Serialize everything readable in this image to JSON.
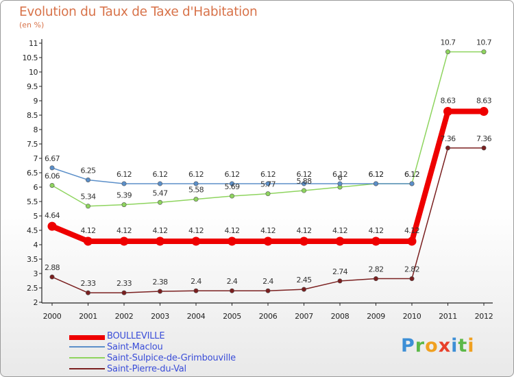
{
  "chart_data": {
    "type": "line",
    "title": "Evolution du Taux de Taxe d'Habitation",
    "subtitle": "(en %)",
    "xlabel": "",
    "ylabel": "",
    "ylim": [
      2,
      11
    ],
    "yticks": [
      "2",
      "2.5",
      "3",
      "3.5",
      "4",
      "4.5",
      "5",
      "5.5",
      "6",
      "6.5",
      "7",
      "7.5",
      "8",
      "8.5",
      "9",
      "9.5",
      "10",
      "10.5",
      "11"
    ],
    "categories": [
      "2000",
      "2001",
      "2002",
      "2003",
      "2004",
      "2005",
      "2006",
      "2007",
      "2008",
      "2009",
      "2010",
      "2011",
      "2012"
    ],
    "series": [
      {
        "name": "BOULLEVILLE",
        "color": "#ee0000",
        "values": [
          4.64,
          4.12,
          4.12,
          4.12,
          4.12,
          4.12,
          4.12,
          4.12,
          4.12,
          4.12,
          4.12,
          8.63,
          8.63
        ],
        "labels": [
          "4.64",
          "4.12",
          "4.12",
          "4.12",
          "4.12",
          "4.12",
          "4.12",
          "4.12",
          "4.12",
          "4.12",
          "4.12",
          "8.63",
          "8.63"
        ]
      },
      {
        "name": "Saint-Maclou",
        "color": "#5b8fc9",
        "values": [
          6.67,
          6.25,
          6.12,
          6.12,
          6.12,
          6.12,
          6.12,
          6.12,
          6.12,
          6.12,
          6.12,
          null,
          null
        ],
        "labels": [
          "6.67",
          "6.25",
          "6.12",
          "6.12",
          "6.12",
          "6.12",
          "6.12",
          "6.12",
          "6.12",
          "6.12",
          "6.12",
          "",
          ""
        ]
      },
      {
        "name": "Saint-Sulpice-de-Grimbouville",
        "color": "#8ed45e",
        "values": [
          6.06,
          5.34,
          5.39,
          5.47,
          5.58,
          5.69,
          5.77,
          5.88,
          6,
          6.12,
          6.12,
          10.7,
          10.7
        ],
        "labels": [
          "6.06",
          "5.34",
          "5.39",
          "5.47",
          "5.58",
          "5.69",
          "5.77",
          "5.88",
          "6",
          "6.12",
          "6.12",
          "10.7",
          "10.7"
        ]
      },
      {
        "name": "Saint-Pierre-du-Val",
        "color": "#7a1f1f",
        "values": [
          2.88,
          2.33,
          2.33,
          2.38,
          2.4,
          2.4,
          2.4,
          2.45,
          2.74,
          2.82,
          2.82,
          7.36,
          7.36
        ],
        "labels": [
          "2.88",
          "2.33",
          "2.33",
          "2.38",
          "2.4",
          "2.4",
          "2.4",
          "2.45",
          "2.74",
          "2.82",
          "2.82",
          "7.36",
          "7.36"
        ]
      }
    ],
    "legend_position": "bottom-left",
    "grid": false
  },
  "brand": {
    "letters": [
      {
        "ch": "P",
        "color": "#3d8fd6"
      },
      {
        "ch": "r",
        "color": "#5cb848"
      },
      {
        "ch": "o",
        "color": "#f0a020"
      },
      {
        "ch": "x",
        "color": "#e8402a"
      },
      {
        "ch": "i",
        "color": "#3d8fd6"
      },
      {
        "ch": "t",
        "color": "#5cb848"
      },
      {
        "ch": "i",
        "color": "#f0a020"
      }
    ]
  }
}
